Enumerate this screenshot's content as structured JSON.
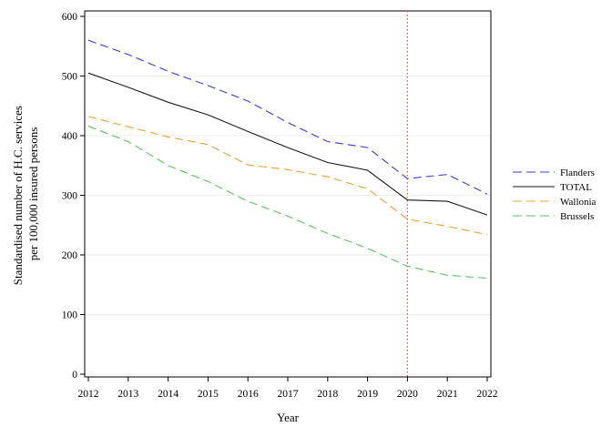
{
  "chart_data": {
    "type": "line",
    "x": [
      2012,
      2013,
      2014,
      2015,
      2016,
      2017,
      2018,
      2019,
      2020,
      2021,
      2022
    ],
    "xlabel": "Year",
    "ylabel_lines": [
      "Standardised number of H.C. services",
      "per 100,000 insured persons"
    ],
    "ylim": [
      0,
      600
    ],
    "yticks": [
      0,
      100,
      200,
      300,
      400,
      500,
      600
    ],
    "xlim": [
      2012,
      2022
    ],
    "grid": "horizontal, faint",
    "legend_position": "right",
    "reference_line": {
      "x": 2020,
      "color": "#d9534f",
      "style": "dotted"
    },
    "series": [
      {
        "name": "Flanders",
        "color": "#3b3bdf",
        "dash": "dashed",
        "values": [
          560,
          536,
          508,
          484,
          458,
          422,
          390,
          380,
          328,
          335,
          302
        ]
      },
      {
        "name": "TOTAL",
        "color": "#1a1a1a",
        "dash": "solid",
        "values": [
          505,
          481,
          456,
          435,
          407,
          380,
          355,
          342,
          292,
          290,
          267
        ]
      },
      {
        "name": "Wallonia",
        "color": "#f0a030",
        "dash": "dashed",
        "values": [
          432,
          415,
          398,
          385,
          351,
          343,
          331,
          311,
          260,
          248,
          234
        ]
      },
      {
        "name": "Brussels",
        "color": "#55c855",
        "dash": "dashed",
        "values": [
          416,
          390,
          350,
          323,
          290,
          265,
          236,
          211,
          181,
          166,
          161
        ]
      }
    ]
  }
}
